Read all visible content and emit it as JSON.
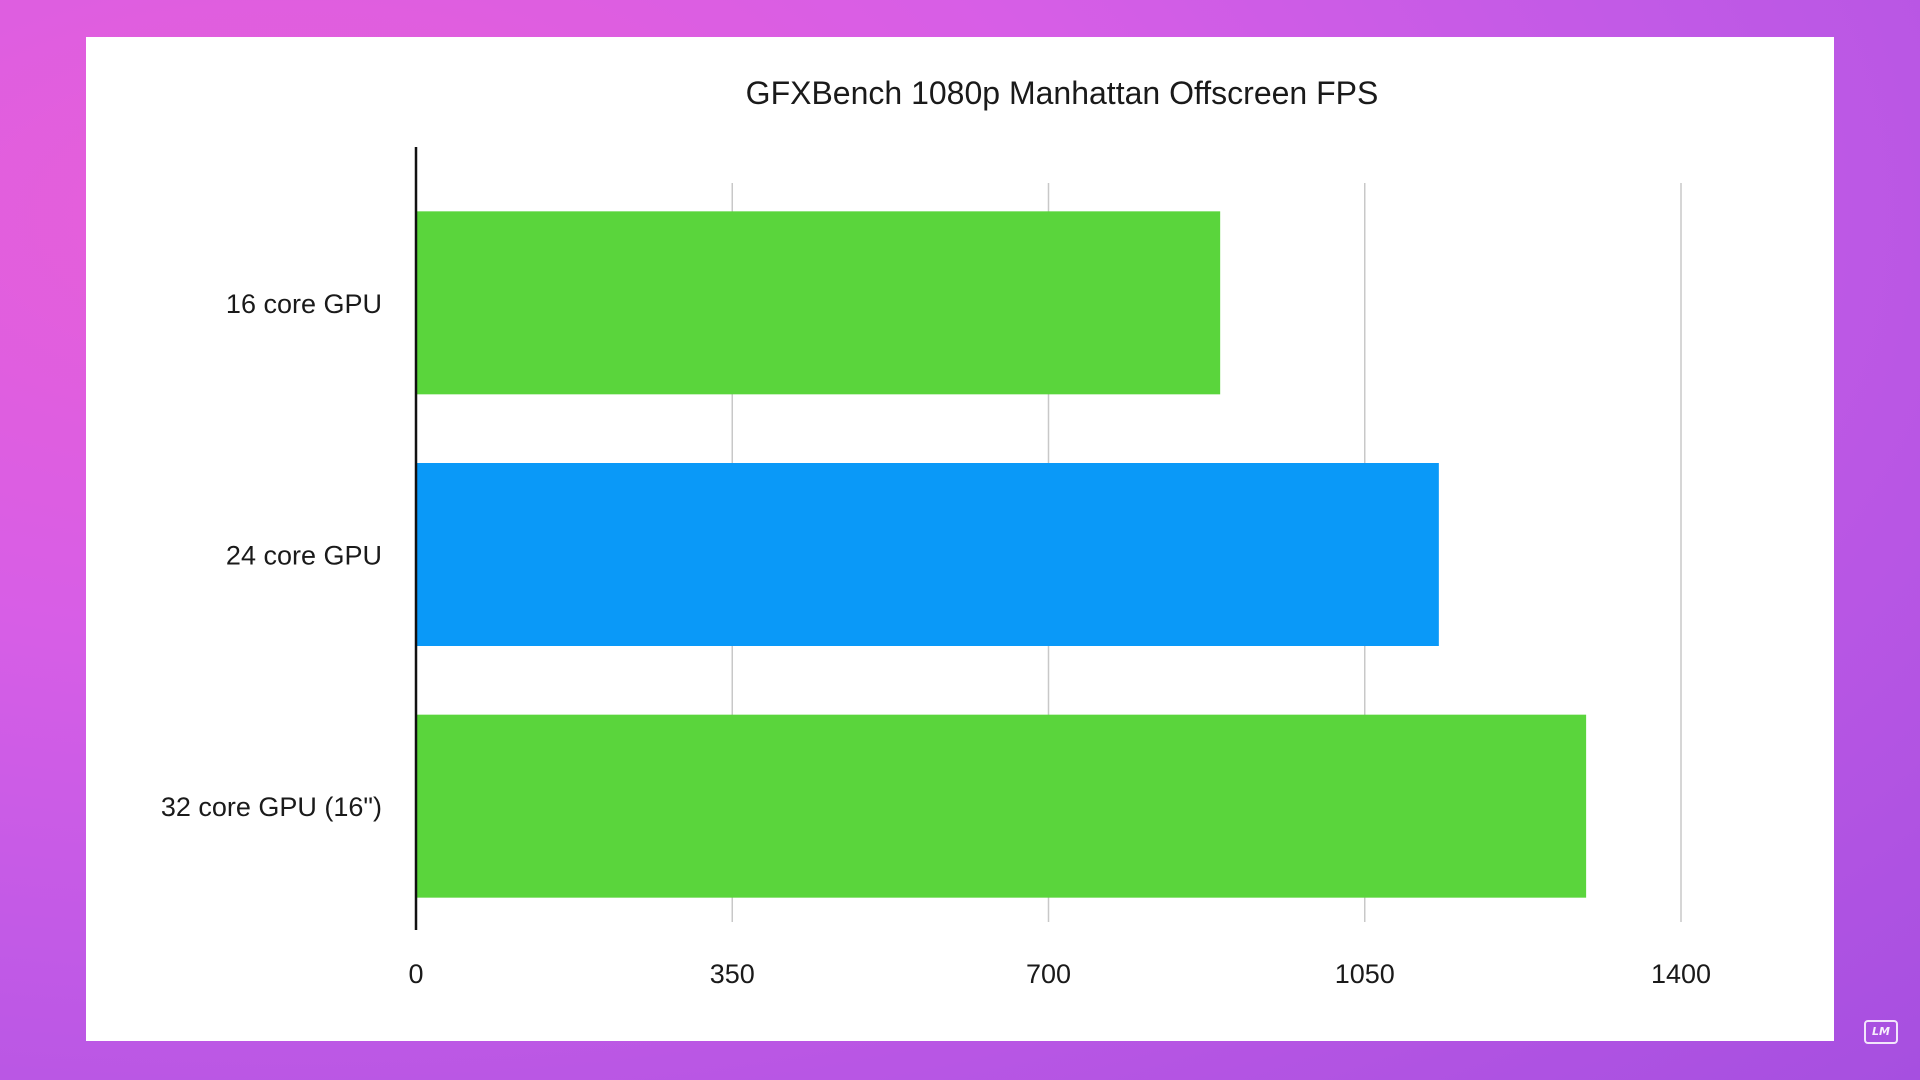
{
  "chart_data": {
    "type": "bar",
    "orientation": "horizontal",
    "title": "GFXBench 1080p Manhattan Offscreen FPS",
    "xlabel": "",
    "ylabel": "",
    "categories": [
      "16 core GPU",
      "24 core GPU",
      "32 core GPU (16\")"
    ],
    "values": [
      890,
      1132,
      1295
    ],
    "bar_colors": [
      "#5ad53c",
      "#0a99f8",
      "#5ad53c"
    ],
    "xlim": [
      0,
      1400
    ],
    "xticks": [
      "0",
      "350",
      "700",
      "1050",
      "1400"
    ],
    "grid": true,
    "legend": "none"
  },
  "watermark": {
    "text": "LM"
  }
}
